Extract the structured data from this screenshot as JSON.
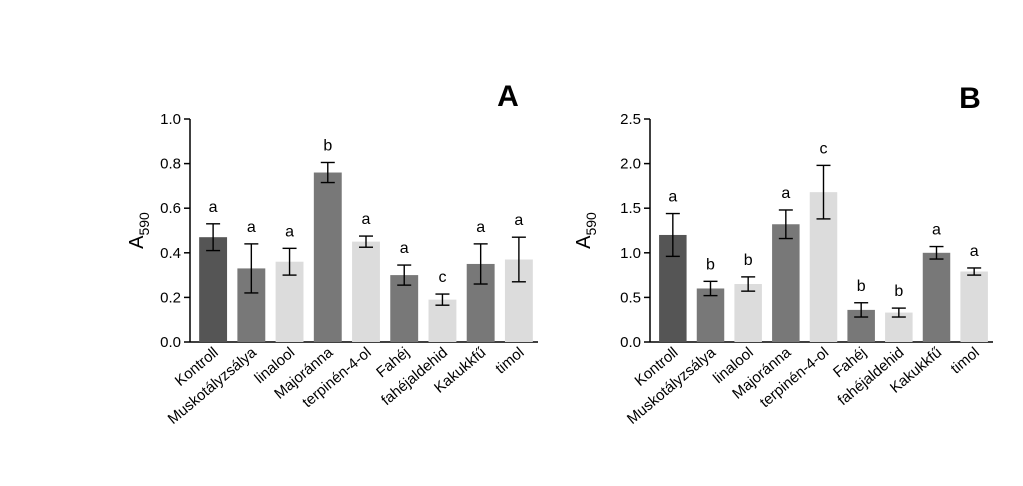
{
  "chart_data": [
    {
      "type": "bar",
      "panel_label": "A",
      "ylabel_main": "A",
      "ylabel_sub": "590",
      "ylim": [
        0,
        1.0
      ],
      "yticks": [
        "0.0",
        "0.2",
        "0.4",
        "0.6",
        "0.8",
        "1.0"
      ],
      "ytick_values": [
        0,
        0.2,
        0.4,
        0.6,
        0.8,
        1.0
      ],
      "categories": [
        "Kontroll",
        "Muskotályzsálya",
        "linalool",
        "Majoránna",
        "terpinén-4-ol",
        "Fahéj",
        "fahéjaldehid",
        "Kakukkfű",
        "timol"
      ],
      "values": [
        0.47,
        0.33,
        0.36,
        0.76,
        0.45,
        0.3,
        0.19,
        0.35,
        0.37
      ],
      "errors": [
        0.06,
        0.11,
        0.06,
        0.045,
        0.025,
        0.045,
        0.025,
        0.09,
        0.1
      ],
      "significance": [
        "a",
        "a",
        "a",
        "b",
        "a",
        "a",
        "c",
        "a",
        "a"
      ],
      "bar_colors": [
        "#555555",
        "#787878",
        "#dcdcdc",
        "#787878",
        "#dcdcdc",
        "#787878",
        "#dcdcdc",
        "#787878",
        "#dcdcdc"
      ]
    },
    {
      "type": "bar",
      "panel_label": "B",
      "ylabel_main": "A",
      "ylabel_sub": "590",
      "ylim": [
        0,
        2.5
      ],
      "yticks": [
        "0.0",
        "0.5",
        "1.0",
        "1.5",
        "2.0",
        "2.5"
      ],
      "ytick_values": [
        0,
        0.5,
        1.0,
        1.5,
        2.0,
        2.5
      ],
      "categories": [
        "Kontroll",
        "Muskotályzsálya",
        "linalool",
        "Majoránna",
        "terpinén-4-ol",
        "Fahéj",
        "fahéjaldehid",
        "Kakukkfű",
        "timol"
      ],
      "values": [
        1.2,
        0.6,
        0.65,
        1.32,
        1.68,
        0.36,
        0.33,
        1.0,
        0.79
      ],
      "errors": [
        0.24,
        0.08,
        0.08,
        0.16,
        0.3,
        0.08,
        0.05,
        0.07,
        0.04
      ],
      "significance": [
        "a",
        "b",
        "b",
        "a",
        "c",
        "b",
        "b",
        "a",
        "a"
      ],
      "bar_colors": [
        "#555555",
        "#787878",
        "#dcdcdc",
        "#787878",
        "#dcdcdc",
        "#787878",
        "#dcdcdc",
        "#787878",
        "#dcdcdc"
      ]
    }
  ]
}
